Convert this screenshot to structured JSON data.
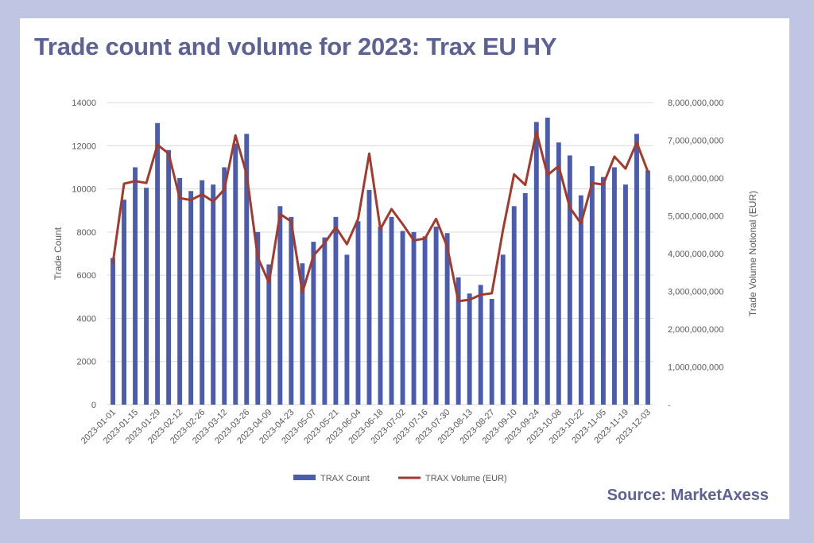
{
  "header": {
    "title": "Trade count and volume for 2023: Trax EU HY"
  },
  "footer": {
    "source": "Source: MarketAxess"
  },
  "colors": {
    "background": "#bfc5e3",
    "title": "#5d6193",
    "bar": "#4a5cab",
    "line": "#a23b2e",
    "grid": "#d9d9d9"
  },
  "chart_data": {
    "type": "bar",
    "xlabel": "",
    "ylabel": "Trade Count",
    "y2label": "Trade Volume Notional (EUR)",
    "ylim": [
      0,
      14000
    ],
    "y2lim": [
      0,
      8000000000
    ],
    "yticks": [
      "0",
      "2000",
      "4000",
      "6000",
      "8000",
      "10000",
      "12000",
      "14000"
    ],
    "y2ticks": [
      "-",
      "1,000,000,000",
      "2,000,000,000",
      "3,000,000,000",
      "4,000,000,000",
      "5,000,000,000",
      "6,000,000,000",
      "7,000,000,000",
      "8,000,000,000"
    ],
    "xticks": [
      "2023-01-01",
      "2023-01-15",
      "2023-01-29",
      "2023-02-12",
      "2023-02-26",
      "2023-03-12",
      "2023-03-26",
      "2023-04-09",
      "2023-04-23",
      "2023-05-07",
      "2023-05-21",
      "2023-06-04",
      "2023-06-18",
      "2023-07-02",
      "2023-07-16",
      "2023-07-30",
      "2023-08-13",
      "2023-08-27",
      "2023-09-10",
      "2023-09-24",
      "2023-10-08",
      "2023-10-22",
      "2023-11-05",
      "2023-11-19",
      "2023-12-03"
    ],
    "grid": true,
    "legend": "bottom",
    "series": [
      {
        "name": "TRAX Count",
        "type": "bar",
        "axis": "left",
        "values": [
          6800,
          9500,
          11000,
          10050,
          13050,
          11800,
          10500,
          9900,
          10400,
          10200,
          11000,
          12100,
          12550,
          8000,
          6500,
          9200,
          8700,
          6550,
          7550,
          7750,
          8700,
          6950,
          8500,
          9950,
          8250,
          8700,
          8050,
          8000,
          7800,
          8250,
          7950,
          5900,
          5150,
          5550,
          4900,
          6950,
          9200,
          9800,
          13100,
          13300,
          12150,
          11550,
          9700,
          11050,
          10550,
          11000,
          10200,
          12550,
          10850
        ]
      },
      {
        "name": "TRAX Volume (EUR)",
        "type": "line",
        "axis": "right",
        "values": [
          3750000000,
          5850000000,
          5920000000,
          5870000000,
          6880000000,
          6650000000,
          5470000000,
          5420000000,
          5570000000,
          5380000000,
          5700000000,
          7130000000,
          6100000000,
          3900000000,
          3230000000,
          5050000000,
          4850000000,
          2970000000,
          3950000000,
          4280000000,
          4700000000,
          4250000000,
          4920000000,
          6650000000,
          4650000000,
          5180000000,
          4780000000,
          4350000000,
          4400000000,
          4920000000,
          4180000000,
          2740000000,
          2780000000,
          2910000000,
          2950000000,
          4620000000,
          6100000000,
          5820000000,
          7230000000,
          6080000000,
          6320000000,
          5220000000,
          4800000000,
          5870000000,
          5830000000,
          6570000000,
          6250000000,
          6940000000,
          6170000000
        ]
      }
    ]
  }
}
